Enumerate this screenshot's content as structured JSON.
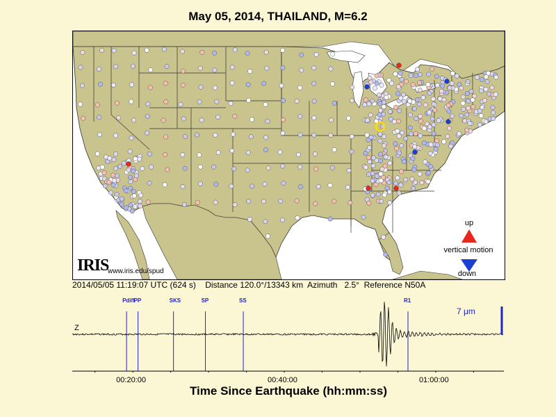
{
  "title": "May 05, 2014, THAILAND, M=6.2",
  "map": {
    "logo_text": "IRIS",
    "url_text": "www.iris.edu/spud",
    "legend": {
      "up": "up",
      "vertical_motion": "vertical motion",
      "down": "down",
      "up_color": "#e8281e",
      "down_color": "#1a3fd4"
    },
    "land_color": "#c9c38e",
    "water_color": "#ffffff"
  },
  "info_line": "2014/05/05 11:19:07 UTC (624 s)    Distance 120.0°/13343 km  Azimuth   2.5°  Reference N50A",
  "seismogram": {
    "channel": "Z",
    "scale_label": "7 μm",
    "phases": [
      "Pdiff",
      "PP",
      "SKS",
      "SP",
      "SS",
      "R1"
    ],
    "time_ticks": [
      "00:20:00",
      "00:40:00",
      "01:00:00"
    ],
    "xlabel": "Time Since Earthquake (hh:mm:ss)",
    "trace_color": "#000000",
    "phase_color": "#2222cc"
  }
}
